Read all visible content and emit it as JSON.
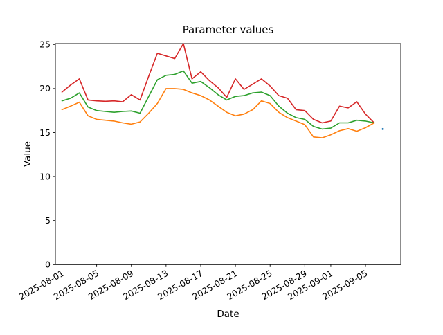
{
  "figure": {
    "title": "Parameter values",
    "x_axis_label": "Date",
    "y_axis_label": "Value"
  },
  "chart_data": {
    "type": "line",
    "title": "Parameter values",
    "xlabel": "Date",
    "ylabel": "Value",
    "ylim": [
      0,
      25.1
    ],
    "grid": false,
    "legend": "none",
    "x": [
      "2025-08-01",
      "2025-08-02",
      "2025-08-03",
      "2025-08-04",
      "2025-08-05",
      "2025-08-06",
      "2025-08-07",
      "2025-08-08",
      "2025-08-09",
      "2025-08-10",
      "2025-08-11",
      "2025-08-12",
      "2025-08-13",
      "2025-08-14",
      "2025-08-15",
      "2025-08-16",
      "2025-08-17",
      "2025-08-18",
      "2025-08-19",
      "2025-08-20",
      "2025-08-21",
      "2025-08-22",
      "2025-08-23",
      "2025-08-24",
      "2025-08-25",
      "2025-08-26",
      "2025-08-27",
      "2025-08-28",
      "2025-08-29",
      "2025-08-30",
      "2025-08-31",
      "2025-09-01",
      "2025-09-02",
      "2025-09-03",
      "2025-09-04",
      "2025-09-05",
      "2025-09-06"
    ],
    "series": [
      {
        "name": "upper-line",
        "color": "#d62728",
        "values": [
          19.6,
          20.4,
          21.1,
          18.7,
          18.6,
          18.55,
          18.6,
          18.5,
          19.3,
          18.7,
          21.4,
          24.0,
          23.7,
          23.4,
          25.1,
          21.1,
          21.9,
          20.9,
          20.1,
          19.0,
          21.1,
          19.9,
          20.5,
          21.1,
          20.3,
          19.2,
          18.9,
          17.6,
          17.5,
          16.5,
          16.1,
          16.3,
          18.0,
          17.8,
          18.5,
          17.1,
          16.1
        ]
      },
      {
        "name": "middle-line",
        "color": "#2ca02c",
        "values": [
          18.6,
          18.9,
          19.5,
          17.9,
          17.5,
          17.4,
          17.3,
          17.4,
          17.45,
          17.2,
          19.1,
          21.0,
          21.5,
          21.6,
          22.0,
          20.6,
          20.8,
          20.1,
          19.3,
          18.7,
          19.1,
          19.2,
          19.5,
          19.6,
          19.2,
          18.0,
          17.2,
          16.7,
          16.5,
          15.7,
          15.4,
          15.5,
          16.1,
          16.1,
          16.4,
          16.3,
          16.1
        ]
      },
      {
        "name": "lower-line",
        "color": "#ff7f0e",
        "values": [
          17.6,
          18.0,
          18.45,
          16.9,
          16.5,
          16.4,
          16.3,
          16.1,
          15.95,
          16.2,
          17.2,
          18.3,
          20.0,
          20.0,
          19.9,
          19.5,
          19.2,
          18.7,
          18.0,
          17.3,
          16.9,
          17.1,
          17.6,
          18.6,
          18.3,
          17.3,
          16.7,
          16.3,
          15.9,
          14.5,
          14.4,
          14.75,
          15.2,
          15.45,
          15.15,
          15.55,
          16.1
        ]
      }
    ],
    "scatter_points": [
      {
        "name": "blue-dot",
        "x": "2025-09-07",
        "y": 15.4,
        "color": "#1f77b4"
      }
    ],
    "x_tick_labels": [
      "2025-08-01",
      "2025-08-05",
      "2025-08-09",
      "2025-08-13",
      "2025-08-17",
      "2025-08-21",
      "2025-08-25",
      "2025-08-29",
      "2025-09-01",
      "2025-09-05"
    ],
    "y_tick_labels": [
      "0",
      "5",
      "10",
      "15",
      "20",
      "25"
    ],
    "y_tick_values": [
      0,
      5,
      10,
      15,
      20,
      25
    ]
  }
}
